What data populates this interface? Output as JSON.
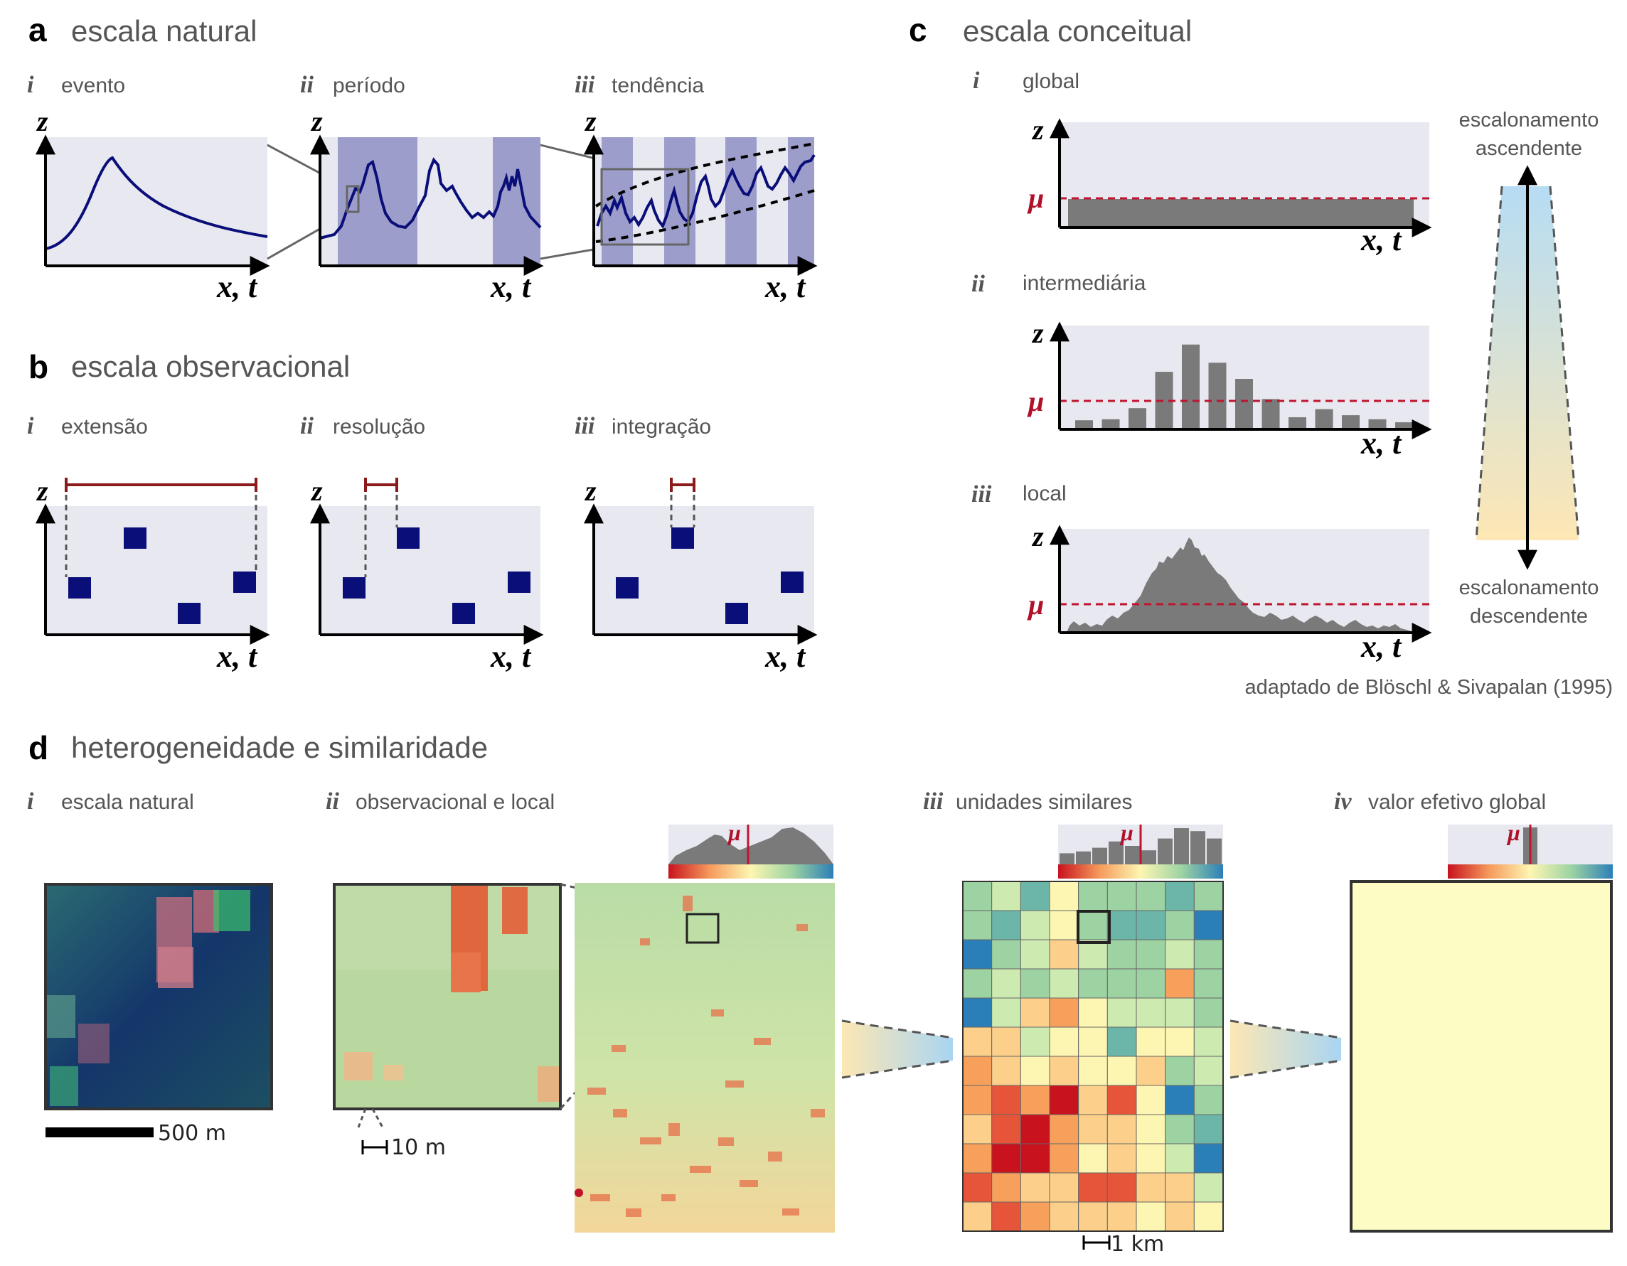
{
  "panel_a": {
    "letter": "a",
    "title": "escala natural",
    "subpanels": [
      {
        "roman": "i",
        "label": "evento"
      },
      {
        "roman": "ii",
        "label": "período"
      },
      {
        "roman": "iii",
        "label": "tendência"
      }
    ]
  },
  "panel_b": {
    "letter": "b",
    "title": "escala observacional",
    "subpanels": [
      {
        "roman": "i",
        "label": "extensão"
      },
      {
        "roman": "ii",
        "label": "resolução"
      },
      {
        "roman": "iii",
        "label": "integração"
      }
    ]
  },
  "panel_c": {
    "letter": "c",
    "title": "escala conceitual",
    "subpanels": [
      {
        "roman": "i",
        "label": "global"
      },
      {
        "roman": "ii",
        "label": "intermediária"
      },
      {
        "roman": "iii",
        "label": "local"
      }
    ],
    "up_label_line1": "escalonamento",
    "up_label_line2": "ascendente",
    "down_label_line1": "escalonamento",
    "down_label_line2": "descendente",
    "credit": "adaptado de Blöschl & Sivapalan (1995)",
    "intermediate_bars": [
      0.09,
      0.1,
      0.21,
      0.57,
      0.84,
      0.66,
      0.5,
      0.3,
      0.12,
      0.2,
      0.14,
      0.1,
      0.07
    ]
  },
  "panel_d": {
    "letter": "d",
    "title": "heterogeneidade e similaridade",
    "subpanels": [
      {
        "roman": "i",
        "label": "escala natural"
      },
      {
        "roman": "ii",
        "label": "observacional e local"
      },
      {
        "roman": "iii",
        "label": "unidades similares"
      },
      {
        "roman": "iv",
        "label": "valor efetivo global"
      }
    ],
    "scale_500": "500 m",
    "scale_10": "10 m",
    "scale_1km": "1 km",
    "unit_hist_bars": [
      0.3,
      0.35,
      0.45,
      0.62,
      0.5,
      0.38,
      0.7,
      0.98,
      0.9,
      0.7
    ]
  },
  "axis_labels": {
    "z": "z",
    "xt": "x, t",
    "mu": "μ"
  },
  "colors": {
    "navy": "#0a0e78",
    "band": "#9d9dcc",
    "bg_panel": "#e8e8f0",
    "mu_line": "#c0142e",
    "grey_bar": "#7a7a7a",
    "effective_value": "#fdfcc4"
  }
}
